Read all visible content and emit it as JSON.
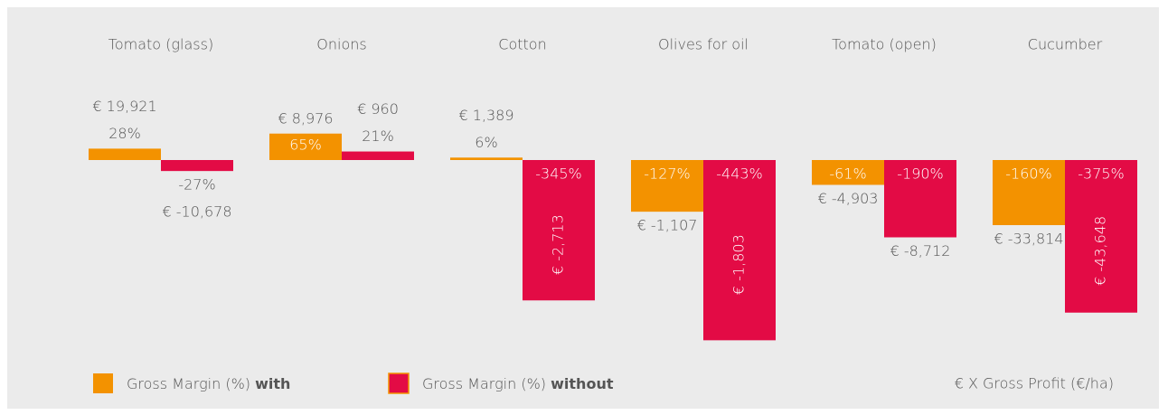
{
  "chart_data": {
    "type": "bar",
    "categories": [
      "Tomato (glass)",
      "Onions",
      "Cotton",
      "Olives for oil",
      "Tomato (open)",
      "Cucumber"
    ],
    "series": [
      {
        "name": "Gross Margin (%)",
        "name_emphasis": "with",
        "color": "#f39200",
        "values": [
          28,
          65,
          6,
          -127,
          -61,
          -160
        ],
        "value_labels": [
          "28%",
          "65%",
          "6%",
          "-127%",
          "-61%",
          "-160%"
        ],
        "profit_labels": [
          "€ 19,921",
          "€ 8,976",
          "€ 1,389",
          "€ -1,107",
          "€ -4,903",
          "€ -33,814"
        ]
      },
      {
        "name": "Gross Margin (%)",
        "name_emphasis": "without",
        "color": "#e30b45",
        "values": [
          -27,
          21,
          -345,
          -443,
          -190,
          -375
        ],
        "value_labels": [
          "-27%",
          "21%",
          "-345%",
          "-443%",
          "-190%",
          "-375%"
        ],
        "profit_labels": [
          "€ -10,678",
          "€ 960",
          "€ -2,713",
          "€ -1,803",
          "€ -8,712",
          "€ -43,648"
        ]
      }
    ],
    "note": "€ X Gross Profit (€/ha)",
    "ylim": [
      -460,
      80
    ]
  }
}
